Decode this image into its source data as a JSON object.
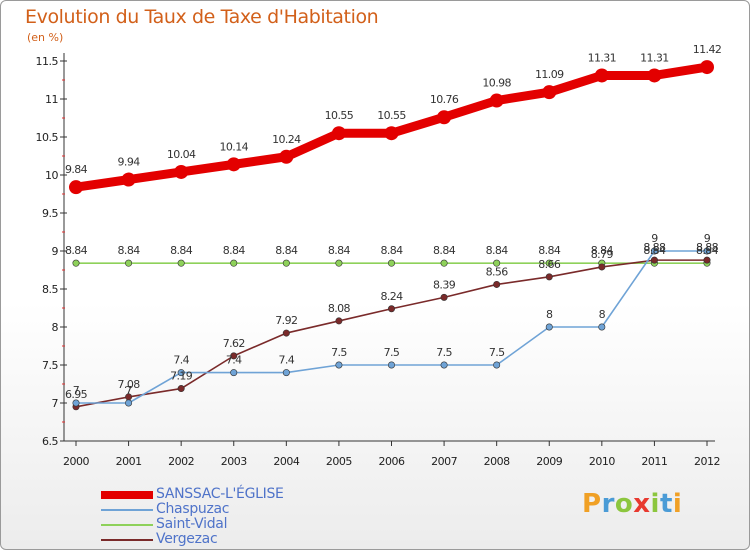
{
  "header": {
    "title": "Evolution du Taux de Taxe d'Habitation",
    "subtitle": "(en %)"
  },
  "brand": {
    "letters": [
      "P",
      "r",
      "o",
      "x",
      "i",
      "t",
      "i"
    ],
    "colors": [
      "#f0a025",
      "#4a9bd6",
      "#8cc63e",
      "#e8392f",
      "#8cc63e",
      "#4a9bd6",
      "#f0a025"
    ]
  },
  "chart_data": {
    "type": "line",
    "title": "Evolution du Taux de Taxe d'Habitation",
    "ylabel": "(en %)",
    "xlabel": "",
    "x": [
      "2000",
      "2001",
      "2002",
      "2003",
      "2004",
      "2005",
      "2006",
      "2007",
      "2008",
      "2009",
      "2010",
      "2011",
      "2012"
    ],
    "ylim": [
      6.5,
      11.5
    ],
    "yticks": [
      "6.5",
      "7",
      "7.5",
      "8",
      "8.5",
      "9",
      "9.5",
      "10",
      "10.5",
      "11",
      "11.5"
    ],
    "grid": false,
    "legend_position": "bottom-left",
    "series": [
      {
        "name": "SANSSAC-L'ÉGLISE",
        "color": "#e30000",
        "values": [
          9.84,
          9.94,
          10.04,
          10.14,
          10.24,
          10.55,
          10.55,
          10.76,
          10.98,
          11.09,
          11.31,
          11.31,
          11.42
        ],
        "labels": [
          "9.84",
          "9.94",
          "10.04",
          "10.14",
          "10.24",
          "10.55",
          "10.55",
          "10.76",
          "10.98",
          "11.09",
          "11.31",
          "11.31",
          "11.42"
        ]
      },
      {
        "name": "Chaspuzac",
        "color": "#6fa3d6",
        "values": [
          7,
          7,
          7.4,
          7.4,
          7.4,
          7.5,
          7.5,
          7.5,
          7.5,
          8,
          8,
          9,
          9
        ],
        "labels": [
          "7",
          "7",
          "7.4",
          "7.4",
          "7.4",
          "7.5",
          "7.5",
          "7.5",
          "7.5",
          "8",
          "8",
          "9",
          "9"
        ]
      },
      {
        "name": "Saint-Vidal",
        "color": "#8ed15a",
        "values": [
          8.84,
          8.84,
          8.84,
          8.84,
          8.84,
          8.84,
          8.84,
          8.84,
          8.84,
          8.84,
          8.84,
          8.84,
          8.84
        ],
        "labels": [
          "8.84",
          "8.84",
          "8.84",
          "8.84",
          "8.84",
          "8.84",
          "8.84",
          "8.84",
          "8.84",
          "8.84",
          "8.84",
          "8.84",
          "8.84"
        ]
      },
      {
        "name": "Vergezac",
        "color": "#7a2a2a",
        "values": [
          6.95,
          7.08,
          7.19,
          7.62,
          7.92,
          8.08,
          8.24,
          8.39,
          8.56,
          8.66,
          8.79,
          8.88,
          8.88
        ],
        "labels": [
          "6.95",
          "7.08",
          "7.19",
          "7.62",
          "7.92",
          "8.08",
          "8.24",
          "8.39",
          "8.56",
          "8.66",
          "8.79",
          "8.88",
          "8.88"
        ]
      }
    ]
  }
}
